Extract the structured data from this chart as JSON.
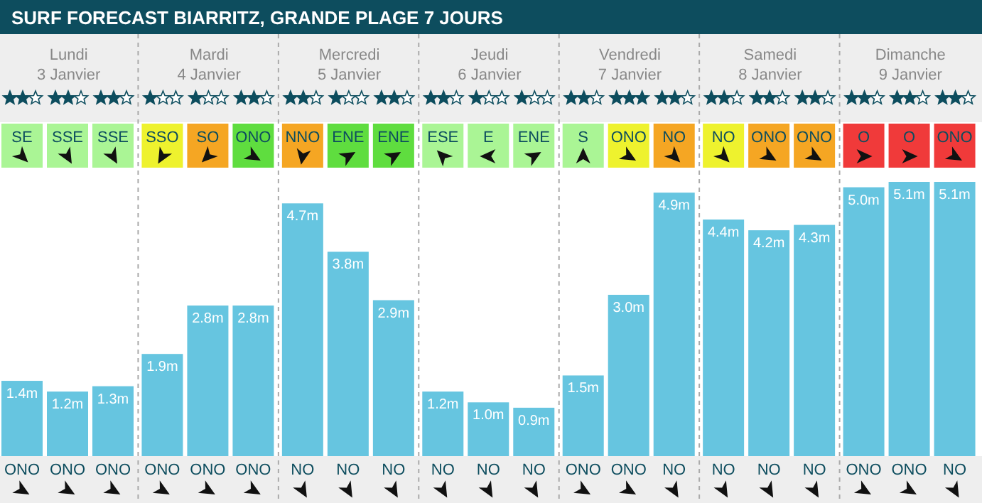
{
  "chart_data": {
    "type": "bar",
    "title": "SURF FORECAST BIARRITZ, GRANDE PLAGE 7 JOURS",
    "categories": [
      "ONO",
      "ONO",
      "ONO",
      "ONO",
      "ONO",
      "ONO",
      "NO",
      "NO",
      "NO",
      "NO",
      "NO",
      "NO",
      "ONO",
      "ONO",
      "NO",
      "NO",
      "NO",
      "NO",
      "ONO",
      "ONO",
      "NO"
    ],
    "values": [
      1.4,
      1.2,
      1.3,
      1.9,
      2.8,
      2.8,
      4.7,
      3.8,
      2.9,
      1.2,
      1.0,
      0.9,
      1.5,
      3.0,
      4.9,
      4.4,
      4.2,
      4.3,
      5.0,
      5.1,
      5.1
    ],
    "value_labels": [
      "1.4m",
      "1.2m",
      "1.3m",
      "1.9m",
      "2.8m",
      "2.8m",
      "4.7m",
      "3.8m",
      "2.9m",
      "1.2m",
      "1.0m",
      "0.9m",
      "1.5m",
      "3.0m",
      "4.9m",
      "4.4m",
      "4.2m",
      "4.3m",
      "5.0m",
      "5.1m",
      "5.1m"
    ],
    "color": "#66c5e0",
    "annotations": [
      "Lundi 3 Janvier",
      "Mardi 4 Janvier",
      "Mercredi 5 Janvier",
      "Jeudi 6 Janvier",
      "Vendredi 7 Janvier",
      "Samedi 8 Janvier",
      "Dimanche 9 Janvier",
      "SE",
      "SSE",
      "SSE",
      "SSO",
      "SO",
      "ONO",
      "NNO",
      "ENE",
      "ENE",
      "ESE",
      "E",
      "ENE",
      "S",
      "ONO",
      "NO",
      "NO",
      "ONO",
      "ONO",
      "O",
      "O",
      "ONO"
    ]
  }
}
